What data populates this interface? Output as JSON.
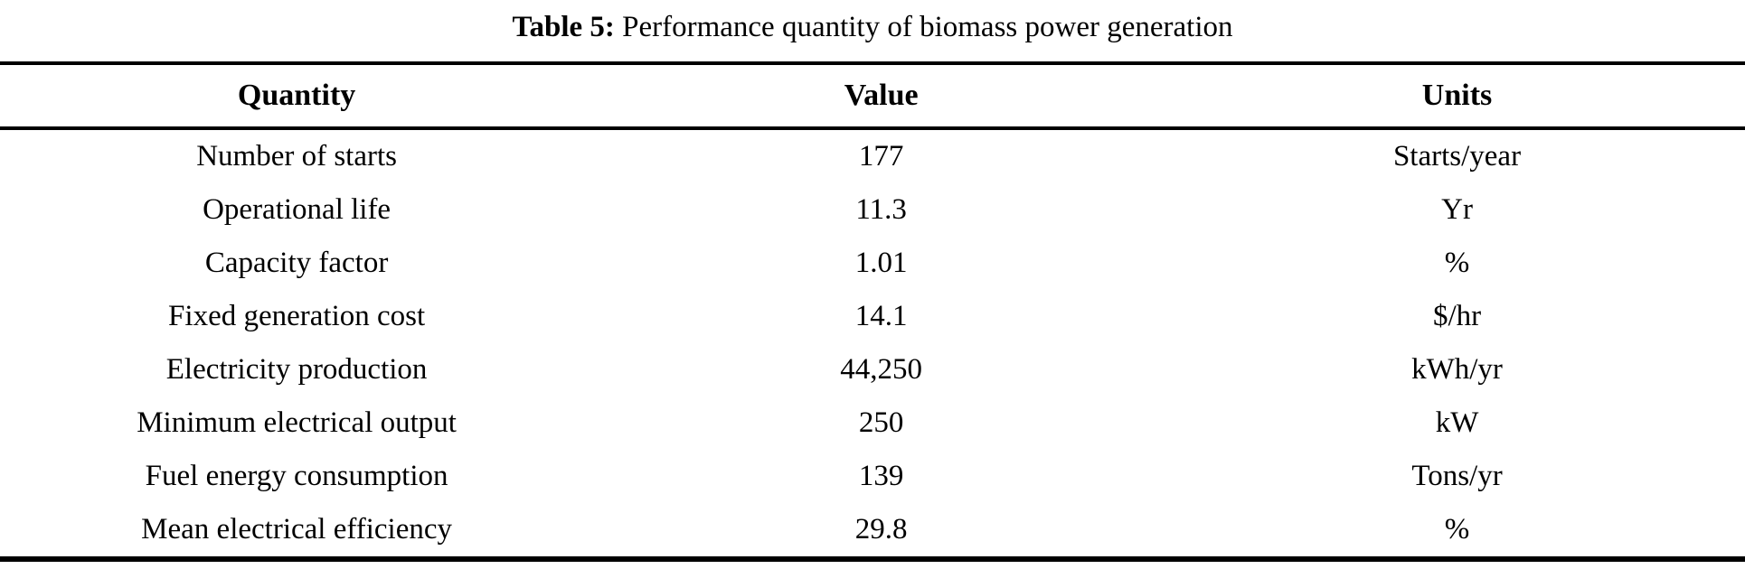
{
  "caption": {
    "label": "Table 5:",
    "text": " Performance quantity of biomass power generation"
  },
  "table": {
    "columns": [
      "Quantity",
      "Value",
      "Units"
    ],
    "rows": [
      {
        "quantity": "Number of starts",
        "value": "177",
        "units": "Starts/year"
      },
      {
        "quantity": "Operational life",
        "value": "11.3",
        "units": "Yr"
      },
      {
        "quantity": "Capacity factor",
        "value": "1.01",
        "units": "%"
      },
      {
        "quantity": "Fixed generation cost",
        "value": "14.1",
        "units": "$/hr"
      },
      {
        "quantity": "Electricity production",
        "value": "44,250",
        "units": "kWh/yr"
      },
      {
        "quantity": "Minimum electrical output",
        "value": "250",
        "units": "kW"
      },
      {
        "quantity": "Fuel energy consumption",
        "value": "139",
        "units": "Tons/yr"
      },
      {
        "quantity": "Mean electrical efficiency",
        "value": "29.8",
        "units": "%"
      }
    ]
  }
}
